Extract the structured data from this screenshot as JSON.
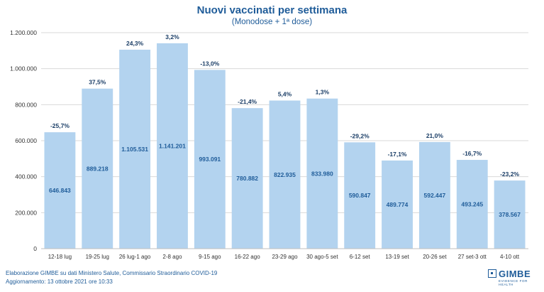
{
  "header": {
    "title": "Nuovi vaccinati per settimana",
    "subtitle": "(Monodose + 1ª dose)"
  },
  "footer": {
    "source": "Elaborazione GIMBE su dati Ministero Salute, Commissario Straordinario COVID-19",
    "updated": "Aggiornamento: 13 ottobre 2021 ore 10:33"
  },
  "logo": {
    "name": "GIMBE",
    "tagline": "EVIDENCE FOR HEALTH"
  },
  "chart_data": {
    "type": "bar",
    "title": "Nuovi vaccinati per settimana",
    "subtitle": "(Monodose + 1ª dose)",
    "categories": [
      "12-18 lug",
      "19-25 lug",
      "26 lug-1 ago",
      "2-8 ago",
      "9-15 ago",
      "16-22 ago",
      "23-29 ago",
      "30 ago-5 set",
      "6-12 set",
      "13-19 set",
      "20-26 set",
      "27 set-3 ott",
      "4-10 ott"
    ],
    "values": [
      646843,
      889218,
      1105531,
      1141201,
      993091,
      780882,
      822935,
      833980,
      590847,
      489774,
      592447,
      493245,
      378567
    ],
    "value_labels": [
      "646.843",
      "889.218",
      "1.105.531",
      "1.141.201",
      "993.091",
      "780.882",
      "822.935",
      "833.980",
      "590.847",
      "489.774",
      "592.447",
      "493.245",
      "378.567"
    ],
    "change_labels": [
      "-25,7%",
      "37,5%",
      "24,3%",
      "3,2%",
      "-13,0%",
      "-21,4%",
      "5,4%",
      "1,3%",
      "-29,2%",
      "-17,1%",
      "21,0%",
      "-16,7%",
      "-23,2%"
    ],
    "ylim": [
      0,
      1200000
    ],
    "yticks": [
      0,
      200000,
      400000,
      600000,
      800000,
      1000000,
      1200000
    ],
    "ytick_labels": [
      "0",
      "200.000",
      "400.000",
      "600.000",
      "800.000",
      "1.000.000",
      "1.200.000"
    ],
    "xlabel": "",
    "ylabel": "",
    "grid": true,
    "colors": {
      "bar": "#b3d3ef",
      "text": "#1f5c99",
      "grid": "#d9d9d9"
    }
  }
}
